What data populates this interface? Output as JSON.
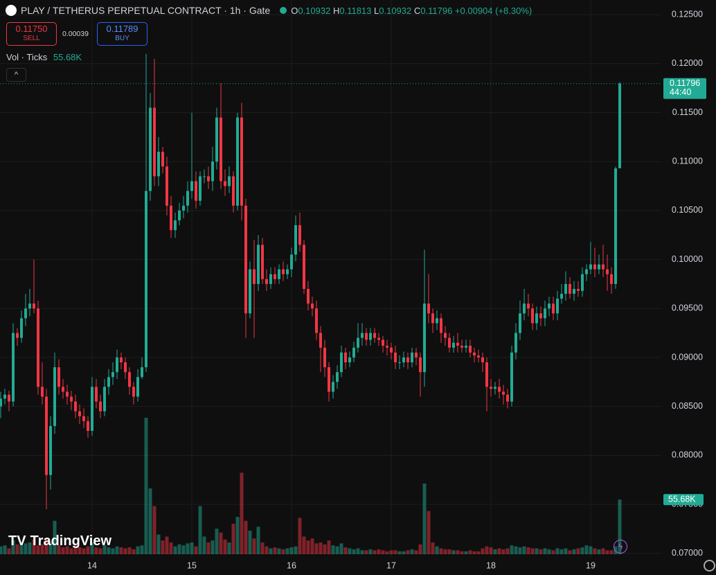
{
  "header": {
    "sell": {
      "price": "0.11750",
      "label": "SELL"
    },
    "spread": "0.00039",
    "buy": {
      "price": "0.11789",
      "label": "BUY"
    },
    "ohlc_labels": [
      "O",
      "H",
      "L",
      "C"
    ],
    "change": "+0.00904 (+8.30%)",
    "brand": "TradingView"
  },
  "chart_data": {
    "type": "candlestick",
    "title": "PLAY / TETHERUS PERPETUAL CONTRACT · 1h · Gate",
    "countdown": "44:40",
    "up_color": "#22ab94",
    "down_color": "#f23645",
    "grid": true,
    "ylim": [
      0.0692,
      0.1265
    ],
    "yticks": [
      {
        "value": 0.07,
        "label": "0.07000"
      },
      {
        "value": 0.075,
        "label": "0.07500"
      },
      {
        "value": 0.08,
        "label": "0.08000"
      },
      {
        "value": 0.085,
        "label": "0.08500"
      },
      {
        "value": 0.09,
        "label": "0.09000"
      },
      {
        "value": 0.095,
        "label": "0.09500"
      },
      {
        "value": 0.1,
        "label": "0.10000"
      },
      {
        "value": 0.105,
        "label": "0.10500"
      },
      {
        "value": 0.11,
        "label": "0.11000"
      },
      {
        "value": 0.115,
        "label": "0.11500"
      },
      {
        "value": 0.12,
        "label": "0.12000"
      },
      {
        "value": 0.125,
        "label": "0.12500"
      }
    ],
    "categories": [
      null,
      null,
      null,
      null,
      null,
      null,
      null,
      null,
      null,
      null,
      null,
      null,
      null,
      null,
      null,
      null,
      null,
      null,
      null,
      null,
      null,
      null,
      "14",
      null,
      null,
      null,
      null,
      null,
      null,
      null,
      null,
      null,
      null,
      null,
      null,
      null,
      null,
      null,
      null,
      null,
      null,
      null,
      null,
      null,
      null,
      null,
      "15",
      null,
      null,
      null,
      null,
      null,
      null,
      null,
      null,
      null,
      null,
      null,
      null,
      null,
      null,
      null,
      null,
      null,
      null,
      null,
      null,
      null,
      null,
      null,
      "16",
      null,
      null,
      null,
      null,
      null,
      null,
      null,
      null,
      null,
      null,
      null,
      null,
      null,
      null,
      null,
      null,
      null,
      null,
      null,
      null,
      null,
      null,
      null,
      "17",
      null,
      null,
      null,
      null,
      null,
      null,
      null,
      null,
      null,
      null,
      null,
      null,
      null,
      null,
      null,
      null,
      null,
      null,
      null,
      null,
      null,
      null,
      null,
      "18",
      null,
      null,
      null,
      null,
      null,
      null,
      null,
      null,
      null,
      null,
      null,
      null,
      null,
      null,
      null,
      null,
      null,
      null,
      null,
      null,
      null,
      null,
      null,
      "19",
      null,
      null,
      null,
      null,
      null,
      null,
      null
    ],
    "open": [
      0.085,
      0.0858,
      0.0862,
      0.0855,
      0.0925,
      0.092,
      0.094,
      0.095,
      0.0955,
      0.095,
      0.087,
      0.086,
      0.078,
      0.083,
      0.089,
      0.087,
      0.0865,
      0.086,
      0.0855,
      0.0845,
      0.084,
      0.0835,
      0.0825,
      0.087,
      0.0855,
      0.0845,
      0.087,
      0.088,
      0.0885,
      0.09,
      0.0895,
      0.0885,
      0.087,
      0.086,
      0.088,
      0.089,
      0.107,
      0.1155,
      0.1085,
      0.111,
      0.1095,
      0.1055,
      0.103,
      0.104,
      0.105,
      0.1055,
      0.107,
      0.108,
      0.106,
      0.1085,
      0.1085,
      0.108,
      0.11,
      0.1145,
      0.108,
      0.1075,
      0.1085,
      0.1055,
      0.1145,
      0.1055,
      0.0945,
      0.099,
      0.0975,
      0.1015,
      0.098,
      0.0975,
      0.0985,
      0.098,
      0.099,
      0.0985,
      0.099,
      0.1005,
      0.1035,
      0.1015,
      0.097,
      0.0955,
      0.095,
      0.0925,
      0.091,
      0.089,
      0.0865,
      0.0875,
      0.0885,
      0.0905,
      0.0895,
      0.09,
      0.091,
      0.092,
      0.0925,
      0.0918,
      0.0925,
      0.092,
      0.0918,
      0.0912,
      0.091,
      0.0905,
      0.0895,
      0.0895,
      0.09,
      0.0895,
      0.0905,
      0.09,
      0.0885,
      0.0955,
      0.0945,
      0.0935,
      0.094,
      0.0925,
      0.092,
      0.091,
      0.0915,
      0.0912,
      0.091,
      0.0912,
      0.0905,
      0.0902,
      0.09,
      0.0895,
      0.087,
      0.0868,
      0.087,
      0.0865,
      0.0862,
      0.0855,
      0.0905,
      0.0925,
      0.0945,
      0.0955,
      0.095,
      0.0935,
      0.0945,
      0.094,
      0.095,
      0.0955,
      0.0945,
      0.096,
      0.0965,
      0.0975,
      0.0965,
      0.097,
      0.0968,
      0.0985,
      0.099,
      0.0995,
      0.099,
      0.0995,
      0.099,
      0.0985,
      0.0975,
      0.10932
    ],
    "high": [
      0.0865,
      0.0868,
      0.0866,
      0.0935,
      0.093,
      0.0948,
      0.0965,
      0.097,
      0.1,
      0.0958,
      0.0895,
      0.0868,
      0.084,
      0.0905,
      0.0898,
      0.0878,
      0.0872,
      0.0866,
      0.0862,
      0.0852,
      0.0848,
      0.084,
      0.088,
      0.0878,
      0.0862,
      0.0878,
      0.0888,
      0.0895,
      0.0908,
      0.0905,
      0.09,
      0.089,
      0.0875,
      0.0888,
      0.09,
      0.121,
      0.117,
      0.1205,
      0.1125,
      0.1115,
      0.1105,
      0.1065,
      0.1048,
      0.1058,
      0.1065,
      0.108,
      0.115,
      0.109,
      0.109,
      0.1092,
      0.1095,
      0.1115,
      0.1155,
      0.118,
      0.1092,
      0.1095,
      0.109,
      0.115,
      0.116,
      0.1062,
      0.0998,
      0.102,
      0.1025,
      0.1022,
      0.099,
      0.0992,
      0.0992,
      0.0995,
      0.0998,
      0.0995,
      0.1012,
      0.1045,
      0.1048,
      0.102,
      0.0978,
      0.0962,
      0.0958,
      0.0932,
      0.0918,
      0.0895,
      0.0882,
      0.0892,
      0.0912,
      0.091,
      0.0906,
      0.0916,
      0.0935,
      0.0935,
      0.093,
      0.093,
      0.093,
      0.0925,
      0.0922,
      0.0918,
      0.0915,
      0.0912,
      0.0902,
      0.0906,
      0.0905,
      0.091,
      0.091,
      0.0905,
      0.101,
      0.0985,
      0.095,
      0.0948,
      0.0945,
      0.0932,
      0.0925,
      0.0922,
      0.0925,
      0.0918,
      0.0918,
      0.0918,
      0.091,
      0.0908,
      0.0905,
      0.09,
      0.0878,
      0.0875,
      0.0878,
      0.0872,
      0.0868,
      0.0912,
      0.0935,
      0.0958,
      0.097,
      0.0965,
      0.0955,
      0.0952,
      0.0952,
      0.0958,
      0.0962,
      0.0962,
      0.0968,
      0.0975,
      0.0988,
      0.0982,
      0.0978,
      0.0978,
      0.0992,
      0.0995,
      0.1018,
      0.1012,
      0.1005,
      0.1015,
      0.1005,
      0.0992,
      0.1095,
      0.11813
    ],
    "low": [
      0.0838,
      0.0852,
      0.0845,
      0.085,
      0.0912,
      0.0915,
      0.0932,
      0.0942,
      0.0945,
      0.0862,
      0.0852,
      0.0745,
      0.0765,
      0.0822,
      0.0862,
      0.0858,
      0.0852,
      0.0846,
      0.0838,
      0.0832,
      0.0828,
      0.0818,
      0.082,
      0.0848,
      0.0838,
      0.084,
      0.0862,
      0.0872,
      0.0878,
      0.0888,
      0.0878,
      0.0862,
      0.0852,
      0.0855,
      0.0878,
      0.0885,
      0.106,
      0.1075,
      0.1075,
      0.1088,
      0.1045,
      0.1022,
      0.1022,
      0.1035,
      0.1042,
      0.1048,
      0.1062,
      0.1052,
      0.1055,
      0.1078,
      0.1072,
      0.107,
      0.1092,
      0.1072,
      0.1065,
      0.1068,
      0.1048,
      0.105,
      0.104,
      0.092,
      0.094,
      0.092,
      0.0968,
      0.0975,
      0.0968,
      0.097,
      0.0975,
      0.0975,
      0.0978,
      0.098,
      0.0982,
      0.0998,
      0.1008,
      0.0965,
      0.0948,
      0.0942,
      0.0918,
      0.0885,
      0.088,
      0.0855,
      0.0858,
      0.0868,
      0.088,
      0.0888,
      0.089,
      0.0895,
      0.0905,
      0.0912,
      0.0912,
      0.0912,
      0.0915,
      0.0912,
      0.0905,
      0.0902,
      0.0898,
      0.0888,
      0.0888,
      0.089,
      0.0888,
      0.089,
      0.0892,
      0.086,
      0.087,
      0.0935,
      0.0925,
      0.0928,
      0.0915,
      0.0912,
      0.0905,
      0.0905,
      0.0905,
      0.0905,
      0.0905,
      0.09,
      0.0895,
      0.0895,
      0.0885,
      0.0845,
      0.086,
      0.0862,
      0.0858,
      0.0852,
      0.0848,
      0.085,
      0.0898,
      0.0918,
      0.0938,
      0.0942,
      0.0928,
      0.0928,
      0.0932,
      0.0932,
      0.0942,
      0.0938,
      0.0938,
      0.0955,
      0.0958,
      0.096,
      0.0958,
      0.0962,
      0.0962,
      0.0978,
      0.0985,
      0.0982,
      0.0985,
      0.0982,
      0.0968,
      0.0965,
      0.097,
      0.10932
    ],
    "close": [
      0.0858,
      0.0862,
      0.0855,
      0.0925,
      0.092,
      0.094,
      0.095,
      0.0955,
      0.095,
      0.087,
      0.086,
      0.078,
      0.083,
      0.089,
      0.087,
      0.0865,
      0.086,
      0.0855,
      0.0845,
      0.084,
      0.0835,
      0.0825,
      0.087,
      0.0855,
      0.0845,
      0.087,
      0.088,
      0.0885,
      0.09,
      0.0895,
      0.0885,
      0.087,
      0.086,
      0.088,
      0.089,
      0.107,
      0.1155,
      0.1085,
      0.111,
      0.1095,
      0.1055,
      0.103,
      0.104,
      0.105,
      0.1055,
      0.107,
      0.108,
      0.106,
      0.1085,
      0.1085,
      0.108,
      0.11,
      0.1145,
      0.108,
      0.1075,
      0.1085,
      0.1055,
      0.1145,
      0.1055,
      0.0945,
      0.099,
      0.0975,
      0.1015,
      0.098,
      0.0975,
      0.0985,
      0.098,
      0.099,
      0.0985,
      0.099,
      0.1005,
      0.1035,
      0.1015,
      0.097,
      0.0955,
      0.095,
      0.0925,
      0.091,
      0.089,
      0.0865,
      0.0875,
      0.0885,
      0.0905,
      0.0895,
      0.09,
      0.091,
      0.092,
      0.0925,
      0.0918,
      0.0925,
      0.092,
      0.0918,
      0.0912,
      0.091,
      0.0905,
      0.0895,
      0.0895,
      0.09,
      0.0895,
      0.0905,
      0.09,
      0.0885,
      0.0955,
      0.0945,
      0.0935,
      0.094,
      0.0925,
      0.092,
      0.091,
      0.0915,
      0.0912,
      0.091,
      0.0912,
      0.0905,
      0.0902,
      0.09,
      0.0895,
      0.087,
      0.0868,
      0.087,
      0.0865,
      0.0862,
      0.0855,
      0.0905,
      0.0925,
      0.0945,
      0.0955,
      0.095,
      0.0935,
      0.0945,
      0.094,
      0.095,
      0.0955,
      0.0945,
      0.096,
      0.0965,
      0.0975,
      0.0965,
      0.097,
      0.0968,
      0.0985,
      0.099,
      0.0995,
      0.099,
      0.0995,
      0.099,
      0.0985,
      0.0975,
      0.1093,
      0.11796
    ],
    "volume": {
      "name": "Vol · Ticks",
      "values": [
        8000,
        9000,
        6000,
        14000,
        10000,
        9000,
        11000,
        12000,
        15000,
        9000,
        10000,
        16000,
        12000,
        34000,
        9000,
        7000,
        8000,
        6000,
        9000,
        7000,
        6000,
        8000,
        12000,
        7000,
        6000,
        9000,
        7000,
        6000,
        8000,
        7000,
        6000,
        7000,
        5000,
        8000,
        9000,
        139000,
        67000,
        49000,
        20000,
        14000,
        18000,
        12000,
        8000,
        10000,
        9000,
        11000,
        12000,
        8000,
        49000,
        18000,
        12000,
        14000,
        26000,
        22000,
        15000,
        12000,
        31000,
        38000,
        83000,
        34000,
        24000,
        16000,
        28000,
        12000,
        8000,
        6000,
        7000,
        6000,
        5000,
        6000,
        7000,
        8000,
        37000,
        18000,
        14000,
        16000,
        11000,
        12000,
        10000,
        14000,
        9000,
        8000,
        11000,
        7000,
        6000,
        5000,
        6000,
        4000,
        4000,
        5000,
        4000,
        5000,
        4000,
        3000,
        4000,
        4000,
        3000,
        3000,
        4000,
        5000,
        4000,
        10000,
        72000,
        44000,
        12000,
        8000,
        6000,
        5000,
        5000,
        4000,
        4000,
        3000,
        3000,
        4000,
        3000,
        3000,
        6000,
        8000,
        7000,
        5000,
        6000,
        5000,
        6000,
        9000,
        8000,
        7000,
        8000,
        7000,
        6000,
        6000,
        5000,
        6000,
        5000,
        4000,
        6000,
        5000,
        6000,
        4000,
        5000,
        6000,
        7000,
        9000,
        8000,
        6000,
        5000,
        6000,
        4000,
        4000,
        8000,
        55680
      ],
      "value_labels": [
        null,
        null,
        null,
        null,
        null,
        null,
        null,
        null,
        null,
        null,
        null,
        null,
        null,
        null,
        null,
        null,
        null,
        null,
        null,
        null,
        null,
        null,
        null,
        null,
        null,
        null,
        null,
        null,
        null,
        null,
        null,
        null,
        null,
        null,
        null,
        null,
        null,
        null,
        null,
        null,
        null,
        null,
        null,
        null,
        null,
        null,
        null,
        null,
        null,
        null,
        null,
        null,
        null,
        null,
        null,
        null,
        null,
        null,
        null,
        null,
        null,
        null,
        null,
        null,
        null,
        null,
        null,
        null,
        null,
        null,
        null,
        null,
        null,
        null,
        null,
        null,
        null,
        null,
        null,
        null,
        null,
        null,
        null,
        null,
        null,
        null,
        null,
        null,
        null,
        null,
        null,
        null,
        null,
        null,
        null,
        null,
        null,
        null,
        null,
        null,
        null,
        null,
        null,
        null,
        null,
        null,
        null,
        null,
        null,
        null,
        null,
        null,
        null,
        null,
        null,
        null,
        null,
        null,
        null,
        null,
        null,
        null,
        null,
        null,
        null,
        null,
        null,
        null,
        null,
        null,
        null,
        null,
        null,
        null,
        null,
        null,
        null,
        null,
        null,
        null,
        null,
        null,
        null,
        null,
        null,
        null,
        null,
        null,
        null,
        "55.68K"
      ]
    }
  }
}
